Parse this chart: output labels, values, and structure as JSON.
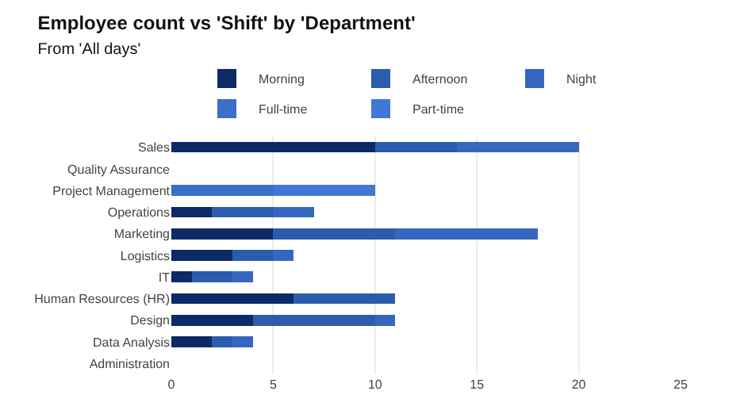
{
  "chart_data": {
    "type": "bar",
    "orientation": "horizontal",
    "stacked": true,
    "title": "Employee count vs 'Shift' by 'Department'",
    "subtitle": "From 'All days'",
    "categories": [
      "Sales",
      "Quality Assurance",
      "Project Management",
      "Operations",
      "Marketing",
      "Logistics",
      "IT",
      "Human Resources (HR)",
      "Design",
      "Data Analysis",
      "Administration"
    ],
    "series": [
      {
        "name": "Morning",
        "color": "#0b2a66",
        "values": [
          10,
          0,
          0,
          2,
          5,
          3,
          1,
          6,
          4,
          2,
          0
        ]
      },
      {
        "name": "Afternoon",
        "color": "#2b5cae",
        "values": [
          4,
          0,
          0,
          3,
          6,
          2,
          2,
          5,
          6,
          1,
          0
        ]
      },
      {
        "name": "Night",
        "color": "#3567c0",
        "values": [
          6,
          0,
          0,
          2,
          7,
          1,
          1,
          0,
          1,
          1,
          0
        ]
      },
      {
        "name": "Full-time",
        "color": "#3a6fcc",
        "values": [
          0,
          0,
          5,
          0,
          0,
          0,
          0,
          0,
          0,
          0,
          0
        ]
      },
      {
        "name": "Part-time",
        "color": "#4178d6",
        "values": [
          0,
          0,
          5,
          0,
          0,
          0,
          0,
          0,
          0,
          0,
          0
        ]
      }
    ],
    "xlim": [
      0,
      25
    ],
    "xticks": [
      0,
      5,
      10,
      15,
      20,
      25
    ],
    "grid": "x",
    "legend": "top"
  }
}
